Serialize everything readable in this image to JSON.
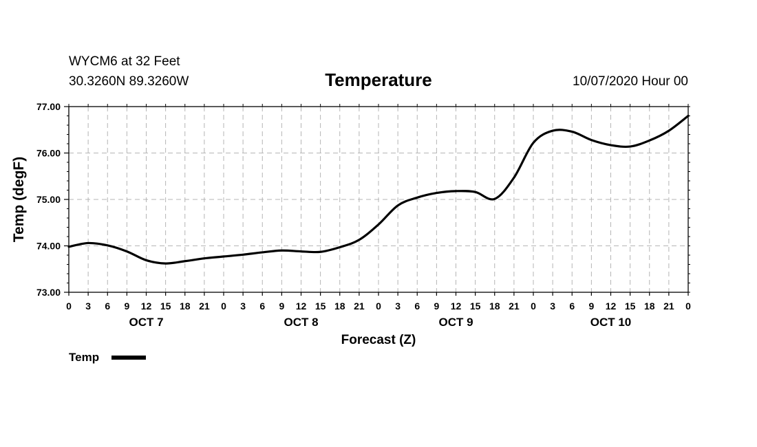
{
  "chart_data": {
    "type": "line",
    "title": "Temperature",
    "station_line": "WYCM6 at 32 Feet",
    "location_line": "30.3260N 89.3260W",
    "date_line": "10/07/2020 Hour 00",
    "xlabel": "Forecast (Z)",
    "ylabel": "Temp (degF)",
    "ylim": [
      73.0,
      77.0
    ],
    "y_ticks": [
      "73.00",
      "74.00",
      "75.00",
      "76.00",
      "77.00"
    ],
    "x_hours_range": [
      0,
      96
    ],
    "x_tick_labels": [
      "0",
      "3",
      "6",
      "9",
      "12",
      "15",
      "18",
      "21",
      "0",
      "3",
      "6",
      "9",
      "12",
      "15",
      "18",
      "21",
      "0",
      "3",
      "6",
      "9",
      "12",
      "15",
      "18",
      "21",
      "0",
      "3",
      "6",
      "9",
      "12",
      "15",
      "18",
      "21",
      "0"
    ],
    "day_labels": [
      "OCT 7",
      "OCT 8",
      "OCT 9",
      "OCT 10"
    ],
    "grid": true,
    "legend_position": "bottom-left",
    "series": [
      {
        "name": "Temp",
        "color": "#000000",
        "x": [
          0,
          3,
          6,
          9,
          12,
          15,
          18,
          21,
          24,
          27,
          30,
          33,
          36,
          39,
          42,
          45,
          48,
          51,
          54,
          57,
          60,
          63,
          66,
          69,
          72,
          75,
          78,
          81,
          84,
          87,
          90,
          93,
          96
        ],
        "values": [
          73.98,
          74.06,
          74.01,
          73.88,
          73.69,
          73.62,
          73.67,
          73.73,
          73.77,
          73.81,
          73.86,
          73.9,
          73.88,
          73.87,
          73.97,
          74.13,
          74.46,
          74.87,
          75.04,
          75.14,
          75.18,
          75.16,
          75.01,
          75.47,
          76.22,
          76.48,
          76.46,
          76.28,
          76.17,
          76.14,
          76.27,
          76.48,
          76.8
        ]
      }
    ]
  }
}
